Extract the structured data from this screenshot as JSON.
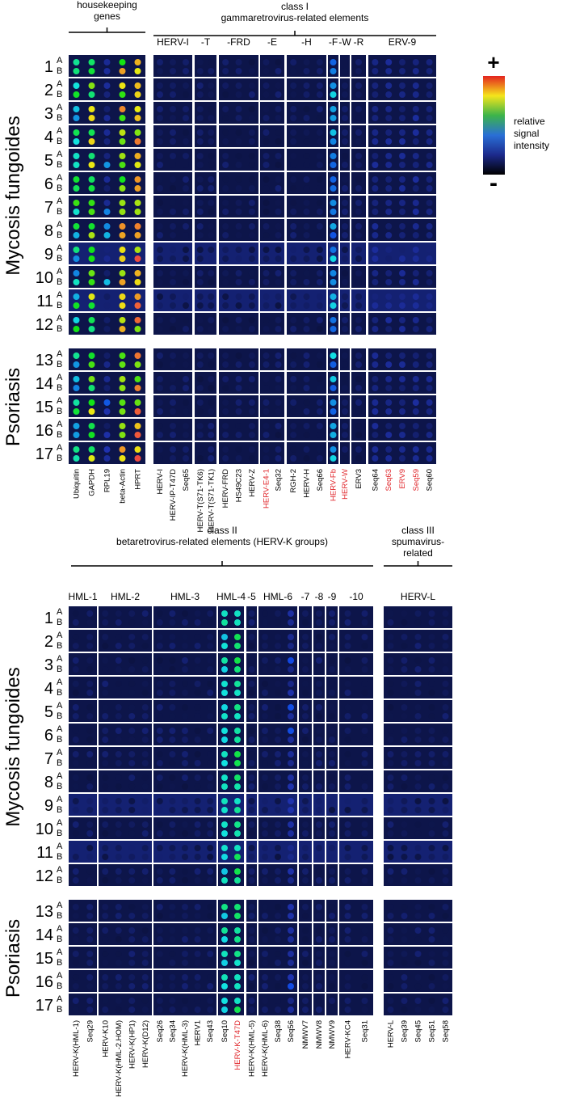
{
  "row_groups": [
    {
      "label": "Mycosis fungoides",
      "rows": [
        "1",
        "2",
        "3",
        "4",
        "5",
        "6",
        "7",
        "8",
        "9",
        "10",
        "11",
        "12"
      ]
    },
    {
      "label": "Psoriasis",
      "rows": [
        "13",
        "14",
        "15",
        "16",
        "17"
      ]
    }
  ],
  "sublabels": [
    "A",
    "B"
  ],
  "legend": {
    "plus": "+",
    "lines": [
      "relative",
      "signal",
      "intensity"
    ],
    "minus": "-"
  },
  "top": {
    "housekeeping": {
      "title": [
        "housekeeping",
        "genes"
      ],
      "groups": [
        {
          "label": "",
          "columns": [
            {
              "name": "Ubiquitin"
            },
            {
              "name": "GAPDH"
            },
            {
              "name": "RPL19"
            },
            {
              "name": "beta-Actin"
            },
            {
              "name": "HPRT"
            }
          ]
        }
      ]
    },
    "class_i": {
      "title": [
        "class I",
        "gammaretrovirus-related elements"
      ],
      "groups": [
        {
          "label": "HERV-I",
          "columns": [
            {
              "name": "HERV-I"
            },
            {
              "name": "HERV-IP-T47D"
            },
            {
              "name": "Seq65"
            }
          ]
        },
        {
          "label": "-T",
          "columns": [
            {
              "name": "HERV-T(S71-TK6)"
            },
            {
              "name": "HERV-T(S71-TK1)"
            }
          ]
        },
        {
          "label": "-FRD",
          "columns": [
            {
              "name": "HERV-FRD"
            },
            {
              "name": "HS49C23"
            },
            {
              "name": "HERV-Z"
            }
          ]
        },
        {
          "label": "-E",
          "columns": [
            {
              "name": "HERV-E4-1",
              "color": "#e0262b"
            },
            {
              "name": "Seq32"
            }
          ]
        },
        {
          "label": "-H",
          "columns": [
            {
              "name": "RGH-2"
            },
            {
              "name": "HERV-H"
            },
            {
              "name": "Seq66"
            }
          ]
        },
        {
          "label": "-F",
          "columns": [
            {
              "name": "HERV-Fb",
              "color": "#e0262b"
            }
          ]
        },
        {
          "label": "-W",
          "columns": [
            {
              "name": "HERV-W",
              "color": "#e0262b"
            }
          ]
        },
        {
          "label": "-R",
          "columns": [
            {
              "name": "ERV3"
            }
          ]
        },
        {
          "label": "ERV-9",
          "columns": [
            {
              "name": "Seq64"
            },
            {
              "name": "Seq63",
              "color": "#e0262b"
            },
            {
              "name": "ERV9",
              "color": "#e0262b"
            },
            {
              "name": "Seq59",
              "color": "#e0262b"
            },
            {
              "name": "Seq60"
            }
          ]
        }
      ]
    }
  },
  "bottom": {
    "class_ii": {
      "title": [
        "class II",
        "betaretrovirus-related elements (HERV-K groups)"
      ],
      "groups": [
        {
          "label": "HML-1",
          "columns": [
            {
              "name": "HERV-K(HML-1)"
            },
            {
              "name": "Seq29"
            }
          ]
        },
        {
          "label": "HML-2",
          "columns": [
            {
              "name": "HERV-K10"
            },
            {
              "name": "HERV-K(HML-2.HOM)"
            },
            {
              "name": "HERV-K(HP1)"
            },
            {
              "name": "HERV-K(D12)"
            }
          ]
        },
        {
          "label": "HML-3",
          "columns": [
            {
              "name": "Seq26"
            },
            {
              "name": "Seq34"
            },
            {
              "name": "HERV-K(HML-3)"
            },
            {
              "name": "HERV1"
            },
            {
              "name": "Seq43"
            }
          ]
        },
        {
          "label": "HML-4",
          "columns": [
            {
              "name": "Seq10"
            },
            {
              "name": "HERV-K-T47D",
              "color": "#e0262b"
            }
          ]
        },
        {
          "label": "-5",
          "columns": [
            {
              "name": "HERV-K(HML-5)"
            }
          ]
        },
        {
          "label": "HML-6",
          "columns": [
            {
              "name": "HERV-K(HML-6)"
            },
            {
              "name": "Seq38"
            },
            {
              "name": "Seq56"
            }
          ]
        },
        {
          "label": "-7",
          "columns": [
            {
              "name": "NMWV7"
            }
          ]
        },
        {
          "label": "-8",
          "columns": [
            {
              "name": "NMWV8"
            }
          ]
        },
        {
          "label": "-9",
          "columns": [
            {
              "name": "NMWV9"
            }
          ]
        },
        {
          "label": "-10",
          "columns": [
            {
              "name": "HERV-KC4"
            },
            {
              "name": "Seq31"
            }
          ]
        }
      ]
    },
    "class_iii": {
      "title": [
        "class III",
        "spumavirus-",
        "related"
      ],
      "groups": [
        {
          "label": "HERV-L",
          "columns": [
            {
              "name": "HERV-L"
            },
            {
              "name": "Seq39"
            },
            {
              "name": "Seq45"
            },
            {
              "name": "Seq51"
            },
            {
              "name": "Seq58"
            }
          ]
        }
      ]
    }
  }
}
